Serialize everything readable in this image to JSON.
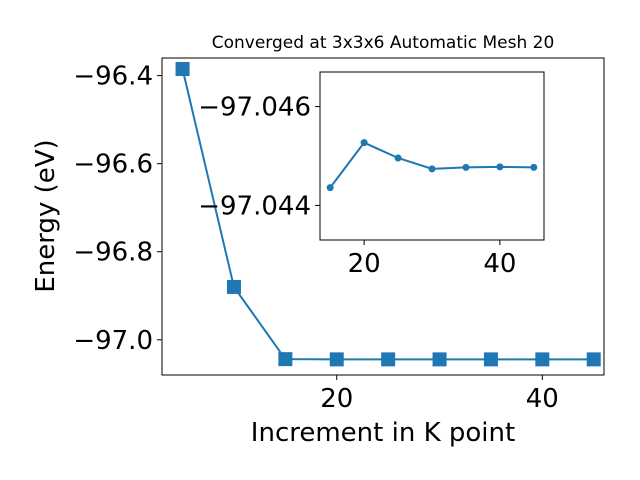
{
  "chart_data": [
    {
      "type": "line",
      "title": "Converged at 3x3x6 Automatic Mesh 20",
      "xlabel": "Increment in K point",
      "ylabel": "Energy (eV)",
      "xlim": [
        3,
        46
      ],
      "ylim": [
        -97.08,
        -96.36
      ],
      "x_ticks": [
        20,
        40
      ],
      "x_tick_labels": [
        "20",
        "40"
      ],
      "y_ticks": [
        -96.4,
        -96.6,
        -96.8,
        -97.0
      ],
      "y_tick_labels": [
        "−96.4",
        "−96.6",
        "−96.8",
        "−97.0"
      ],
      "grid": false,
      "marker": "square",
      "color": "#1f77b4",
      "x": [
        5,
        10,
        15,
        20,
        25,
        30,
        35,
        40,
        45
      ],
      "y": [
        -96.385,
        -96.88,
        -97.044,
        -97.0445,
        -97.0445,
        -97.0445,
        -97.0445,
        -97.0445,
        -97.0445
      ]
    },
    {
      "type": "line",
      "inset": true,
      "xlim": [
        13.5,
        46.5
      ],
      "ylim": [
        -97.0433,
        -97.0467
      ],
      "x_ticks": [
        20,
        40
      ],
      "x_tick_labels": [
        "20",
        "40"
      ],
      "y_ticks": [
        -97.046,
        -97.044
      ],
      "y_tick_labels": [
        "−97.046",
        "−97.044"
      ],
      "grid": false,
      "marker": "circle",
      "color": "#1f77b4",
      "x": [
        15,
        20,
        25,
        30,
        35,
        40,
        45
      ],
      "y": [
        -97.04436,
        -97.04527,
        -97.04496,
        -97.04474,
        -97.04477,
        -97.04478,
        -97.04477
      ]
    }
  ]
}
